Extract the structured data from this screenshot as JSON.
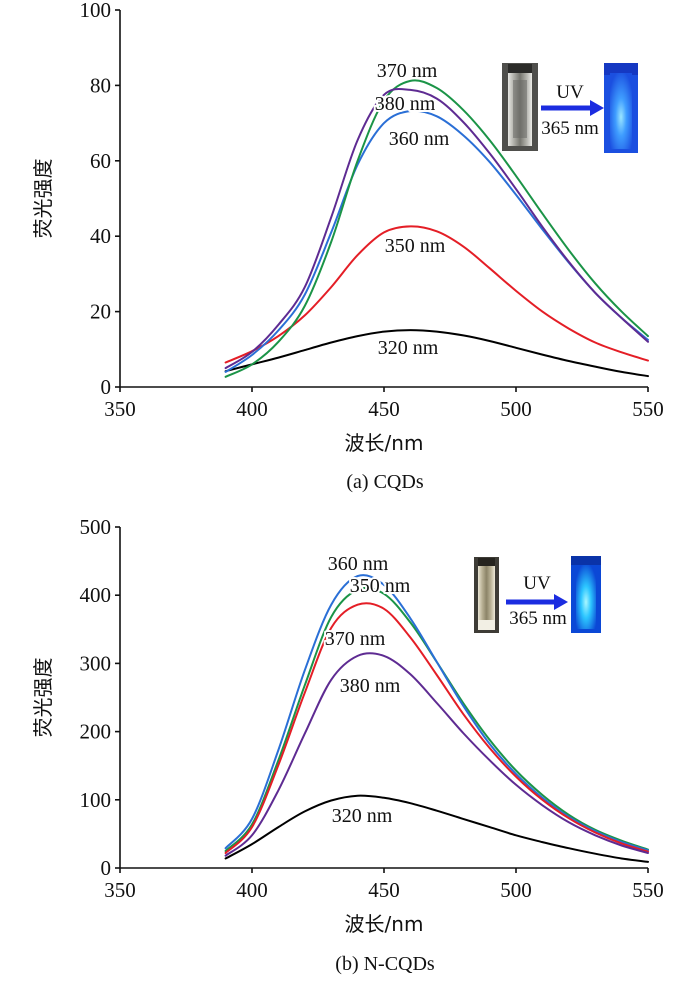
{
  "chart_data": [
    {
      "type": "line",
      "caption": "(a) CQDs",
      "xlabel": "波长/nm",
      "ylabel": "荧光强度",
      "xlim": [
        350,
        550
      ],
      "ylim": [
        0,
        100
      ],
      "xticks": [
        350,
        400,
        450,
        500,
        550
      ],
      "yticks": [
        0,
        20,
        40,
        60,
        80,
        100
      ],
      "grid": false,
      "x": [
        390,
        400,
        410,
        420,
        430,
        440,
        450,
        460,
        470,
        480,
        490,
        500,
        510,
        520,
        530,
        540,
        550
      ],
      "series": [
        {
          "name": "320 nm",
          "color": "#000000",
          "values": [
            4.2,
            6.0,
            7.8,
            9.8,
            11.8,
            13.5,
            14.7,
            15.1,
            14.7,
            13.7,
            12.2,
            10.4,
            8.6,
            6.9,
            5.4,
            4.0,
            2.9
          ]
        },
        {
          "name": "350 nm",
          "color": "#e41e26",
          "values": [
            6.5,
            9.5,
            13.5,
            19.0,
            26.5,
            35.0,
            41.0,
            42.6,
            41.3,
            37.3,
            31.5,
            25.5,
            20.0,
            15.5,
            11.8,
            9.2,
            7.0
          ]
        },
        {
          "name": "360 nm",
          "color": "#2a6fd6",
          "values": [
            4.0,
            8.5,
            15.0,
            24.5,
            41.0,
            59.0,
            70.0,
            73.2,
            71.8,
            66.8,
            59.7,
            51.0,
            41.8,
            33.0,
            25.0,
            18.3,
            12.5
          ]
        },
        {
          "name": "370 nm",
          "color": "#1b9447",
          "values": [
            2.7,
            6.0,
            12.0,
            21.5,
            38.5,
            60.0,
            76.0,
            81.2,
            79.3,
            73.5,
            65.5,
            56.0,
            46.0,
            36.3,
            27.5,
            20.0,
            13.5
          ]
        },
        {
          "name": "380 nm",
          "color": "#5e2b92",
          "values": [
            5.0,
            9.3,
            16.5,
            26.5,
            45.0,
            65.5,
            77.5,
            78.8,
            76.5,
            70.3,
            62.0,
            52.5,
            42.5,
            33.2,
            25.0,
            18.3,
            12.0
          ]
        }
      ],
      "inset": {
        "arrow_top": "UV",
        "arrow_bottom": "365 nm"
      }
    },
    {
      "type": "line",
      "caption": "(b) N-CQDs",
      "xlabel": "波长/nm",
      "ylabel": "荧光强度",
      "xlim": [
        350,
        550
      ],
      "ylim": [
        0,
        500
      ],
      "xticks": [
        350,
        400,
        450,
        500,
        550
      ],
      "yticks": [
        0,
        100,
        200,
        300,
        400,
        500
      ],
      "grid": false,
      "x": [
        390,
        400,
        410,
        420,
        430,
        440,
        450,
        460,
        470,
        480,
        490,
        500,
        510,
        520,
        530,
        540,
        550
      ],
      "series": [
        {
          "name": "320 nm",
          "color": "#000000",
          "values": [
            14,
            35,
            60,
            83,
            99,
            106,
            103,
            95,
            84,
            72,
            60,
            48,
            38,
            29,
            21,
            14,
            9
          ]
        },
        {
          "name": "350 nm",
          "color": "#1b9447",
          "values": [
            25,
            64,
            158,
            268,
            368,
            408,
            402,
            360,
            302,
            242,
            188,
            143,
            107,
            78,
            56,
            40,
            27
          ]
        },
        {
          "name": "360 nm",
          "color": "#2a6fd6",
          "values": [
            29,
            72,
            173,
            290,
            386,
            428,
            415,
            366,
            302,
            238,
            182,
            138,
            103,
            75,
            54,
            38,
            26
          ]
        },
        {
          "name": "370 nm",
          "color": "#e41e26",
          "values": [
            22,
            60,
            151,
            257,
            352,
            386,
            380,
            338,
            283,
            226,
            176,
            134,
            100,
            73,
            52,
            36,
            24
          ]
        },
        {
          "name": "380 nm",
          "color": "#5e2b92",
          "values": [
            18,
            48,
            114,
            197,
            276,
            311,
            311,
            284,
            242,
            198,
            158,
            122,
            92,
            67,
            48,
            33,
            22
          ]
        }
      ],
      "inset": {
        "arrow_top": "UV",
        "arrow_bottom": "365 nm"
      }
    }
  ]
}
